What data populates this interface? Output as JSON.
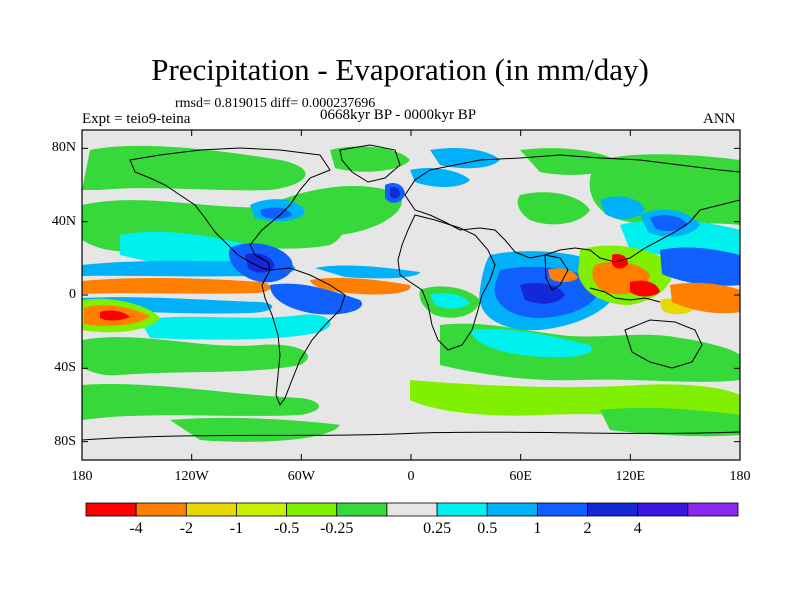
{
  "title": "Precipitation - Evaporation (in mm/day)",
  "stats_line": "rmsd= 0.819015 diff= 0.000237696",
  "period_label": "0668kyr BP - 0000kyr BP",
  "experiment_label": "Expt = teio9-teina",
  "season_label": "ANN",
  "map": {
    "projection": "cylindrical-equidistant",
    "lon_range": [
      -180,
      180
    ],
    "lat_range": [
      -90,
      90
    ],
    "y_ticks": [
      {
        "lat": 80,
        "label": "80N"
      },
      {
        "lat": 40,
        "label": "40N"
      },
      {
        "lat": 0,
        "label": "0"
      },
      {
        "lat": -40,
        "label": "40S"
      },
      {
        "lat": -80,
        "label": "80S"
      }
    ],
    "x_ticks": [
      {
        "lon": -180,
        "label": "180"
      },
      {
        "lon": -120,
        "label": "120W"
      },
      {
        "lon": -60,
        "label": "60W"
      },
      {
        "lon": 0,
        "label": "0"
      },
      {
        "lon": 60,
        "label": "60E"
      },
      {
        "lon": 120,
        "label": "120E"
      },
      {
        "lon": 180,
        "label": "180"
      }
    ]
  },
  "colorbar": {
    "colors": [
      "#ff0000",
      "#ff8000",
      "#e6d800",
      "#c8f000",
      "#80f000",
      "#36d83a",
      "#e6e6e6",
      "#00f0f0",
      "#00b0f8",
      "#1060ff",
      "#1428d8",
      "#3c14e0",
      "#8c28f0"
    ],
    "labels": [
      "-4",
      "-2",
      "-1",
      "-0.5",
      "-0.25",
      "0.25",
      "0.5",
      "1",
      "2",
      "4"
    ]
  }
}
